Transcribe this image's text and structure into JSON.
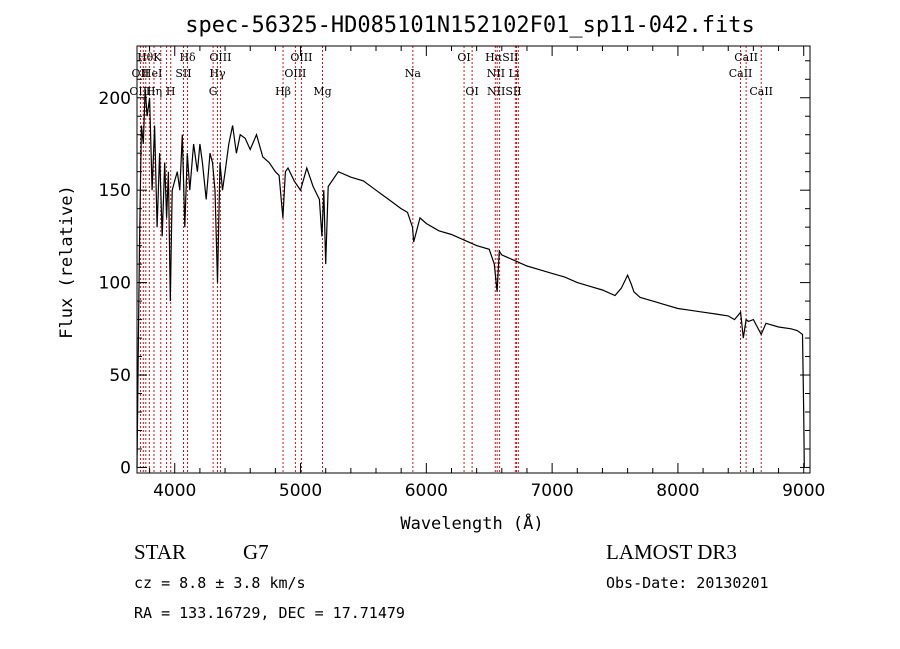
{
  "chart_data": {
    "type": "line",
    "title": "spec-56325-HD085101N152102F01_sp11-042.fits",
    "xlabel": "Wavelength (Å)",
    "ylabel": "Flux (relative)",
    "xlim": [
      3700,
      9050
    ],
    "ylim": [
      -3,
      228
    ],
    "xticks": [
      4000,
      5000,
      6000,
      7000,
      8000,
      9000
    ],
    "yticks": [
      0,
      50,
      100,
      150,
      200
    ],
    "grid": false,
    "series": [
      {
        "name": "spectrum",
        "x": [
          3700,
          3710,
          3720,
          3735,
          3750,
          3765,
          3780,
          3800,
          3820,
          3840,
          3860,
          3880,
          3900,
          3920,
          3935,
          3950,
          3965,
          3980,
          4000,
          4020,
          4040,
          4060,
          4080,
          4100,
          4120,
          4150,
          4180,
          4200,
          4220,
          4250,
          4280,
          4300,
          4320,
          4340,
          4360,
          4380,
          4400,
          4430,
          4460,
          4490,
          4520,
          4560,
          4600,
          4650,
          4700,
          4750,
          4800,
          4830,
          4860,
          4880,
          4900,
          4950,
          5000,
          5050,
          5100,
          5150,
          5170,
          5185,
          5200,
          5220,
          5300,
          5400,
          5500,
          5600,
          5700,
          5800,
          5850,
          5890,
          5900,
          5950,
          6000,
          6100,
          6200,
          6300,
          6400,
          6500,
          6540,
          6563,
          6580,
          6600,
          6700,
          6800,
          6900,
          7000,
          7100,
          7200,
          7300,
          7400,
          7500,
          7550,
          7600,
          7630,
          7650,
          7700,
          7800,
          7900,
          8000,
          8100,
          8200,
          8300,
          8400,
          8450,
          8498,
          8520,
          8542,
          8560,
          8600,
          8662,
          8700,
          8800,
          8900,
          8950,
          8990,
          9000,
          9005
        ],
        "y": [
          0,
          65,
          120,
          185,
          175,
          205,
          190,
          200,
          150,
          185,
          130,
          170,
          125,
          165,
          135,
          160,
          90,
          150,
          155,
          160,
          150,
          180,
          130,
          170,
          150,
          175,
          160,
          175,
          165,
          145,
          170,
          165,
          150,
          100,
          165,
          150,
          160,
          175,
          185,
          170,
          180,
          178,
          172,
          180,
          168,
          165,
          160,
          158,
          135,
          160,
          162,
          155,
          150,
          162,
          152,
          145,
          125,
          150,
          110,
          152,
          160,
          157,
          155,
          150,
          145,
          140,
          138,
          130,
          122,
          135,
          132,
          128,
          126,
          123,
          120,
          118,
          110,
          95,
          117,
          115,
          112,
          109,
          107,
          105,
          103,
          100,
          98,
          96,
          93,
          97,
          104,
          99,
          95,
          92,
          90,
          88,
          86,
          85,
          84,
          83,
          82,
          80,
          84,
          70,
          80,
          79,
          80,
          72,
          78,
          76,
          75,
          74,
          72,
          30,
          0
        ]
      }
    ],
    "line_markers": [
      {
        "label": "HθK",
        "x": 3798,
        "row": 1
      },
      {
        "label": "OII",
        "x": 3727,
        "row": 2
      },
      {
        "label": "HeI",
        "x": 3820,
        "row": 2
      },
      {
        "label": "SII",
        "x": 4070,
        "row": 2
      },
      {
        "label": "OIII",
        "x": 3727,
        "row": 3
      },
      {
        "label": "Hη",
        "x": 3835,
        "row": 3
      },
      {
        "label": "H",
        "x": 3968,
        "row": 3
      },
      {
        "label": "Hδ",
        "x": 4102,
        "row": 1
      },
      {
        "label": "OIII",
        "x": 4363,
        "row": 1
      },
      {
        "label": "Hγ",
        "x": 4340,
        "row": 2
      },
      {
        "label": "G",
        "x": 4305,
        "row": 3
      },
      {
        "label": "Hβ",
        "x": 4861,
        "row": 3
      },
      {
        "label": "OIII",
        "x": 5007,
        "row": 1
      },
      {
        "label": "OIII",
        "x": 4959,
        "row": 2
      },
      {
        "label": "Mg",
        "x": 5175,
        "row": 3
      },
      {
        "label": "Na",
        "x": 5893,
        "row": 2
      },
      {
        "label": "OI",
        "x": 6300,
        "row": 1
      },
      {
        "label": "OI",
        "x": 6364,
        "row": 3
      },
      {
        "label": "HαSII",
        "x": 6600,
        "row": 1
      },
      {
        "label": "NII Li",
        "x": 6610,
        "row": 2
      },
      {
        "label": "NIISII",
        "x": 6620,
        "row": 3
      },
      {
        "label": "CaII",
        "x": 8542,
        "row": 1
      },
      {
        "label": "CaII",
        "x": 8498,
        "row": 2
      },
      {
        "label": "CaII",
        "x": 8662,
        "row": 3
      }
    ],
    "marker_lines_x": [
      3727,
      3750,
      3770,
      3798,
      3835,
      3889,
      3934,
      3968,
      4070,
      4102,
      4305,
      4340,
      4363,
      4861,
      4959,
      5007,
      5175,
      5893,
      6300,
      6364,
      6548,
      6563,
      6583,
      6707,
      6717,
      6731,
      8498,
      8542,
      8662
    ]
  },
  "info": {
    "object_type": "STAR",
    "subclass": "G7",
    "survey": "LAMOST DR3",
    "redshift_line": "cz = 8.8 ± 3.8 km/s",
    "obs_date": "Obs-Date: 20130201",
    "coords": "RA = 133.16729, DEC =  17.71479"
  }
}
